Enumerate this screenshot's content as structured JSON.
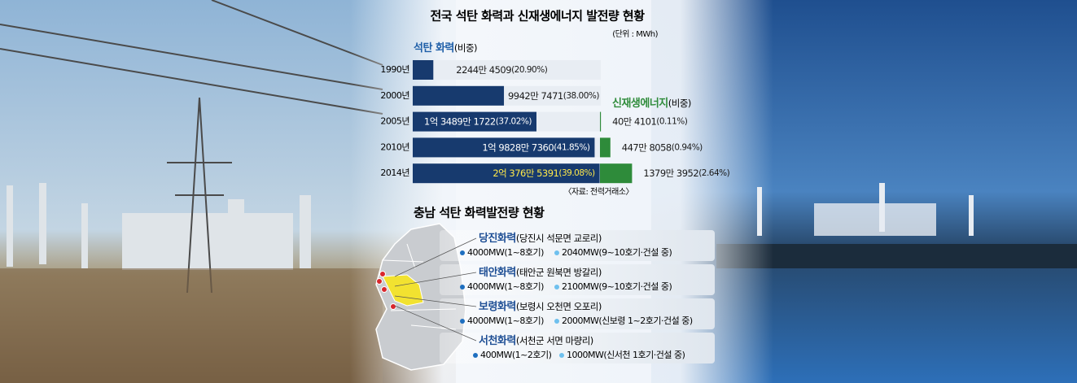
{
  "chart_data": {
    "type": "bar",
    "orientation": "horizontal",
    "title": "전국 석탄 화력과 신재생에너지 발전량 현황",
    "unit": "(단위 : MWh)",
    "source": "〈자료: 전력거래소〉",
    "share_note": "(비중)",
    "categories": [
      "1990년",
      "2000년",
      "2005년",
      "2010년",
      "2014년"
    ],
    "xlim": [
      0,
      205000000
    ],
    "x2lim": [
      0,
      14000000
    ],
    "track_color": "#e8edf3",
    "series": [
      {
        "name": "석탄 화력",
        "color": "#173a6e",
        "values": [
          22444509,
          99427471,
          134891722,
          198287360,
          203765391
        ],
        "value_labels": [
          "2244만 4509",
          "9942만 7471",
          "1억 3489만 1722",
          "1억 9828만 7360",
          "2억 376만 5391"
        ],
        "shares": [
          20.9,
          38.0,
          37.02,
          41.85,
          39.08
        ],
        "share_labels": [
          "(20.90%)",
          "(38.00%)",
          "(37.02%)",
          "(41.85%)",
          "(39.08%)"
        ],
        "label_colors": [
          "#1a1a1a",
          "#1a1a1a",
          "#ffffff",
          "#ffffff",
          "#ffe94a"
        ]
      },
      {
        "name": "신재생에너지",
        "color": "#2e8b3a",
        "axis": "x2",
        "values": [
          null,
          null,
          404101,
          4478058,
          13793952
        ],
        "value_labels": [
          null,
          null,
          "40만 4101",
          "447만 8058",
          "1379만 3952"
        ],
        "shares": [
          null,
          null,
          0.11,
          0.94,
          2.64
        ],
        "share_labels": [
          null,
          null,
          "(0.11%)",
          "(0.94%)",
          "(2.64%)"
        ],
        "label_colors": [
          "#1a1a1a",
          "#1a1a1a",
          "#1a1a1a",
          "#1a1a1a",
          "#1a1a1a"
        ]
      }
    ]
  },
  "map_section": {
    "title": "충남 석탄 화력발전량 현황",
    "plants": [
      {
        "name": "당진화력",
        "location": "(당진시 석문면 교로리)",
        "units": [
          {
            "label": "4000MW(1~8호기)",
            "color": "#1e6fc0"
          },
          {
            "label": "2040MW(9~10호기·건설 중)",
            "color": "#6ec0ee"
          }
        ]
      },
      {
        "name": "태안화력",
        "location": "(태안군 원북면 방갈리)",
        "units": [
          {
            "label": "4000MW(1~8호기)",
            "color": "#1e6fc0"
          },
          {
            "label": "2100MW(9~10호기·건설 중)",
            "color": "#6ec0ee"
          }
        ]
      },
      {
        "name": "보령화력",
        "location": "(보령시 오천면 오포리)",
        "units": [
          {
            "label": "4000MW(1~8호기)",
            "color": "#1e6fc0"
          },
          {
            "label": "2000MW(신보령 1~2호기·건설 중)",
            "color": "#6ec0ee"
          }
        ]
      },
      {
        "name": "서천화력",
        "location": "(서천군 서면 마량리)",
        "units": [
          {
            "label": "400MW(1~2호기)",
            "color": "#1e6fc0"
          },
          {
            "label": "1000MW(신서천 1호기·건설 중)",
            "color": "#6ec0ee"
          }
        ]
      }
    ]
  }
}
